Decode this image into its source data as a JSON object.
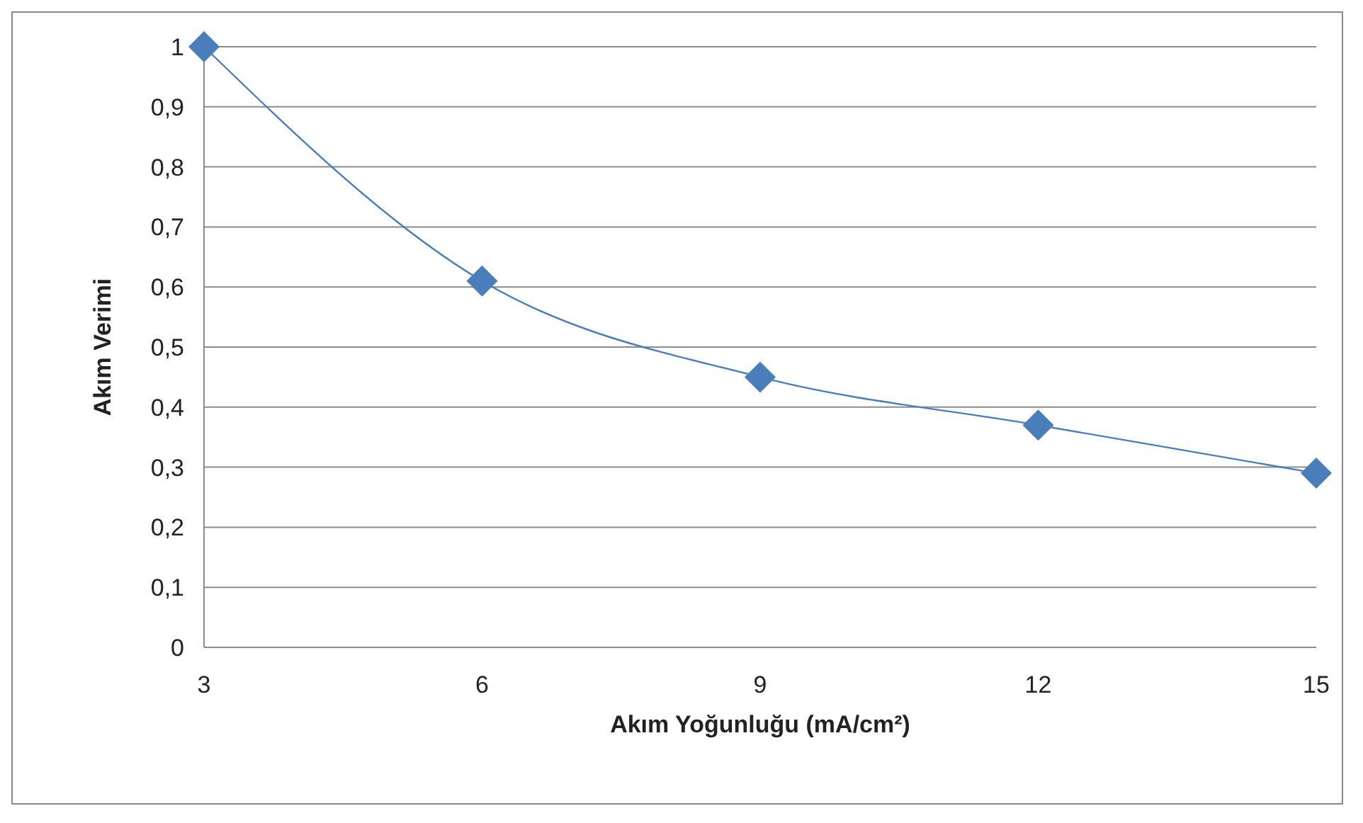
{
  "chart_data": {
    "type": "line",
    "xlabel": "Akım Yoğunluğu (mA/cm²)",
    "ylabel": "Akım Verimi",
    "x": [
      3,
      6,
      9,
      12,
      15
    ],
    "series": [
      {
        "color": "#4a7ebb",
        "values": [
          1,
          0.61,
          0.45,
          0.37,
          0.29
        ]
      }
    ],
    "xlim": [
      3,
      15
    ],
    "xticks": [
      3,
      6,
      9,
      12,
      15
    ],
    "ylim": [
      0,
      1
    ],
    "yticks": [
      0,
      {
        "value": 0.1,
        "label": "0,1"
      },
      {
        "value": 0.2,
        "label": "0,2"
      },
      {
        "value": 0.3,
        "label": "0,3"
      },
      {
        "value": 0.4,
        "label": "0,4"
      },
      {
        "value": 0.5,
        "label": "0,5"
      },
      {
        "value": 0.6,
        "label": "0,6"
      },
      {
        "value": 0.7,
        "label": "0,7"
      },
      {
        "value": 0.8,
        "label": "0,8"
      },
      {
        "value": 0.9,
        "label": "0,9"
      },
      1
    ],
    "grid": "y",
    "marker": "diamond",
    "line_style": "solid",
    "legend": false
  }
}
